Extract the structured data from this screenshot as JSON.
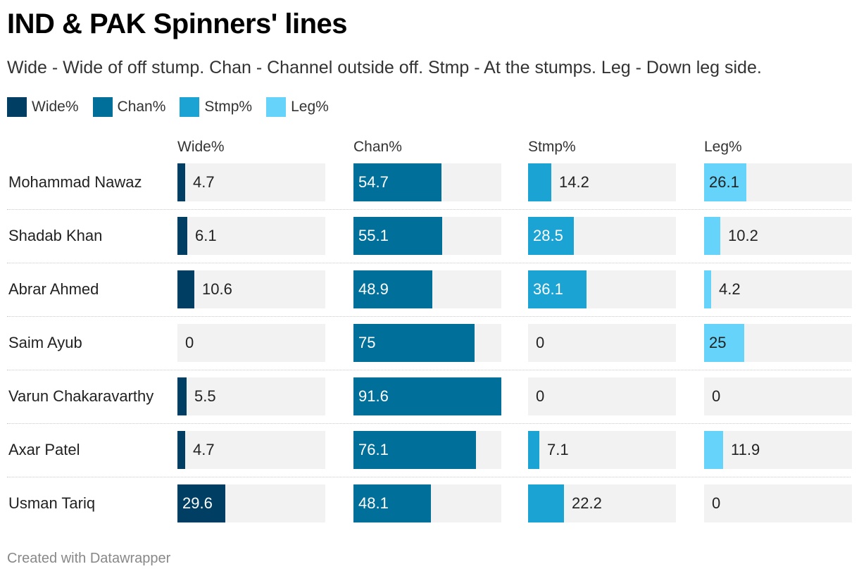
{
  "header": {
    "title": "IND & PAK Spinners' lines",
    "subtitle": "Wide - Wide of off stump. Chan - Channel outside off. Stmp - At the stumps. Leg - Down leg side."
  },
  "legend": [
    {
      "label": "Wide%",
      "color": "#003f63"
    },
    {
      "label": "Chan%",
      "color": "#00709a"
    },
    {
      "label": "Stmp%",
      "color": "#1aa3d3"
    },
    {
      "label": "Leg%",
      "color": "#65d3fa"
    }
  ],
  "footer": {
    "credit": "Created with Datawrapper"
  },
  "chart_data": {
    "type": "bar",
    "layout": "split-bars",
    "categories": [
      "Mohammad Nawaz",
      "Shadab Khan",
      "Abrar Ahmed",
      "Saim Ayub",
      "Varun Chakaravarthy",
      "Axar Patel",
      "Usman Tariq"
    ],
    "series": [
      {
        "name": "Wide%",
        "color": "#003f63",
        "values": [
          4.7,
          6.1,
          10.6,
          0,
          5.5,
          4.7,
          29.6
        ]
      },
      {
        "name": "Chan%",
        "color": "#00709a",
        "values": [
          54.7,
          55.1,
          48.9,
          75,
          91.6,
          76.1,
          48.1
        ]
      },
      {
        "name": "Stmp%",
        "color": "#1aa3d3",
        "values": [
          14.2,
          28.5,
          36.1,
          0,
          0,
          7.1,
          22.2
        ]
      },
      {
        "name": "Leg%",
        "color": "#65d3fa",
        "values": [
          26.1,
          10.2,
          4.2,
          25,
          0,
          11.9,
          0
        ]
      }
    ],
    "value_labels": [
      [
        "4.7",
        "6.1",
        "10.6",
        "0",
        "5.5",
        "4.7",
        "29.6"
      ],
      [
        "54.7",
        "55.1",
        "48.9",
        "75",
        "91.6",
        "76.1",
        "48.1"
      ],
      [
        "14.2",
        "28.5",
        "36.1",
        "0",
        "0",
        "7.1",
        "22.2"
      ],
      [
        "26.1",
        "10.2",
        "4.2",
        "25",
        "0",
        "11.9",
        "0"
      ]
    ],
    "scale_max": 91.6,
    "grid": false
  }
}
